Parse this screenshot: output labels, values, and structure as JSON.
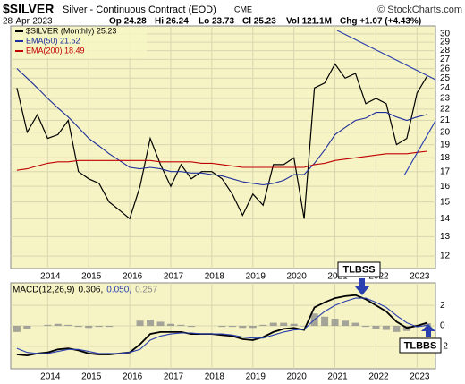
{
  "header": {
    "symbol": "$SILVER",
    "name": "Silver - Continuous Contract (EOD)",
    "exchange": "CME",
    "credit": "© StockCharts.com",
    "date": "28-Apr-2023",
    "open": "Op 24.28",
    "high": "Hi 26.24",
    "low": "Lo 23.73",
    "close": "Cl 25.23",
    "volume": "Vol 121.1M",
    "change": "Chg +1.07 (+4.43%)"
  },
  "annotations": [
    "TLBSS",
    "TLBBS"
  ],
  "chart_data": [
    {
      "type": "line",
      "log_scale": true,
      "grid": true,
      "legend": "top-left",
      "x": [
        2013.25,
        2013.5,
        2013.75,
        2014,
        2014.25,
        2014.5,
        2014.75,
        2015,
        2015.25,
        2015.5,
        2015.75,
        2016,
        2016.25,
        2016.5,
        2016.75,
        2017,
        2017.25,
        2017.5,
        2017.75,
        2018,
        2018.25,
        2018.5,
        2018.75,
        2019,
        2019.25,
        2019.5,
        2019.75,
        2020,
        2020.25,
        2020.5,
        2020.75,
        2021,
        2021.25,
        2021.5,
        2021.75,
        2022,
        2022.25,
        2022.5,
        2022.75,
        2023,
        2023.25
      ],
      "xlim": [
        2013.1,
        2023.45
      ],
      "xticks": [
        2014,
        2015,
        2016,
        2017,
        2018,
        2019,
        2020,
        2021,
        2022,
        2023
      ],
      "ylim": [
        11.4,
        31
      ],
      "yticks": [
        12,
        13,
        14,
        15,
        16,
        17,
        18,
        19,
        20,
        21,
        22,
        23,
        24,
        25,
        26,
        27,
        28,
        29,
        30
      ],
      "series": [
        {
          "name": "$SILVER (Monthly) 25.23",
          "color": "#000000",
          "values": [
            24,
            20,
            21.5,
            19.5,
            19.8,
            21,
            17,
            16.5,
            16.2,
            15,
            14.5,
            14,
            16,
            19.5,
            17.5,
            16,
            17.5,
            16.5,
            17,
            17,
            16.5,
            15.5,
            14.2,
            15.5,
            14.8,
            17.5,
            17.5,
            18,
            14,
            24,
            24.5,
            26.5,
            25,
            25.5,
            22.5,
            23,
            22.5,
            19,
            19.5,
            23.5,
            25.23
          ]
        },
        {
          "name": "EMA(50) 21.52",
          "color": "#1f2f9a",
          "values": [
            26,
            25,
            24,
            23,
            22.1,
            21.3,
            20.4,
            19.5,
            18.9,
            18.3,
            17.8,
            17.3,
            17.2,
            17.3,
            17.2,
            17.0,
            17.0,
            16.9,
            16.9,
            16.8,
            16.7,
            16.5,
            16.3,
            16.2,
            16.1,
            16.2,
            16.4,
            16.8,
            16.8,
            17.6,
            18.6,
            19.8,
            20.4,
            21.0,
            21.2,
            21.7,
            21.7,
            21.3,
            21.0,
            21.3,
            21.52
          ]
        },
        {
          "name": "EMA(200) 18.49",
          "color": "#c00000",
          "values": [
            17.1,
            17.2,
            17.4,
            17.6,
            17.7,
            17.7,
            17.8,
            17.8,
            17.8,
            17.8,
            17.8,
            17.8,
            17.8,
            17.8,
            17.7,
            17.7,
            17.7,
            17.7,
            17.6,
            17.6,
            17.5,
            17.4,
            17.3,
            17.3,
            17.3,
            17.3,
            17.3,
            17.3,
            17.3,
            17.5,
            17.6,
            17.8,
            17.9,
            18.0,
            18.1,
            18.2,
            18.3,
            18.3,
            18.3,
            18.4,
            18.49
          ]
        }
      ]
    },
    {
      "type": "line",
      "title": "MACD(12,26,9)",
      "grid": true,
      "x": [
        2013.25,
        2013.5,
        2013.75,
        2014,
        2014.25,
        2014.5,
        2014.75,
        2015,
        2015.25,
        2015.5,
        2015.75,
        2016,
        2016.25,
        2016.5,
        2016.75,
        2017,
        2017.25,
        2017.5,
        2017.75,
        2018,
        2018.25,
        2018.5,
        2018.75,
        2019,
        2019.25,
        2019.5,
        2019.75,
        2020,
        2020.25,
        2020.5,
        2020.75,
        2021,
        2021.25,
        2021.5,
        2021.75,
        2022,
        2022.25,
        2022.5,
        2022.75,
        2023,
        2023.25
      ],
      "xlim": [
        2013.1,
        2023.45
      ],
      "xticks": [
        2014,
        2015,
        2016,
        2017,
        2018,
        2019,
        2020,
        2021,
        2022,
        2023
      ],
      "ylim": [
        -4.2,
        4.2
      ],
      "yticks": [
        -2,
        0,
        2
      ],
      "series": [
        {
          "label": "0.306,",
          "color": "#000000",
          "style": "line",
          "values": [
            -2.8,
            -2.9,
            -2.7,
            -2.6,
            -2.3,
            -2.2,
            -2.4,
            -2.7,
            -2.8,
            -2.8,
            -2.7,
            -2.6,
            -1.8,
            -0.8,
            -0.6,
            -0.6,
            -0.6,
            -0.8,
            -0.8,
            -0.8,
            -0.9,
            -1.0,
            -1.3,
            -1.4,
            -1.1,
            -0.6,
            -0.3,
            -0.2,
            -0.4,
            1.8,
            2.3,
            2.7,
            2.9,
            3.0,
            2.6,
            2.0,
            1.4,
            0.4,
            -0.2,
            0.0,
            0.306
          ]
        },
        {
          "label": "0.050,",
          "color": "#2a3fb0",
          "style": "line",
          "values": [
            -2.2,
            -2.6,
            -2.7,
            -2.7,
            -2.5,
            -2.3,
            -2.3,
            -2.5,
            -2.7,
            -2.7,
            -2.7,
            -2.6,
            -2.3,
            -1.4,
            -1.0,
            -0.8,
            -0.7,
            -0.7,
            -0.8,
            -0.8,
            -0.8,
            -0.9,
            -1.1,
            -1.2,
            -1.2,
            -0.9,
            -0.6,
            -0.4,
            -0.35,
            0.6,
            1.4,
            2.0,
            2.4,
            2.7,
            2.7,
            2.3,
            1.8,
            1.0,
            0.3,
            -0.1,
            0.05
          ]
        },
        {
          "label": "0.257",
          "color": "#8a8a8a",
          "style": "bar",
          "values": [
            -0.6,
            -0.3,
            0.0,
            0.1,
            0.2,
            0.1,
            -0.1,
            -0.2,
            -0.1,
            -0.1,
            0.0,
            0.0,
            0.5,
            0.6,
            0.4,
            0.2,
            0.1,
            -0.1,
            0.0,
            0.0,
            -0.1,
            -0.1,
            -0.2,
            -0.2,
            0.1,
            0.3,
            0.3,
            0.2,
            -0.05,
            1.2,
            0.9,
            0.7,
            0.5,
            0.3,
            -0.1,
            -0.3,
            -0.4,
            -0.6,
            -0.5,
            0.1,
            0.257
          ]
        }
      ]
    }
  ]
}
